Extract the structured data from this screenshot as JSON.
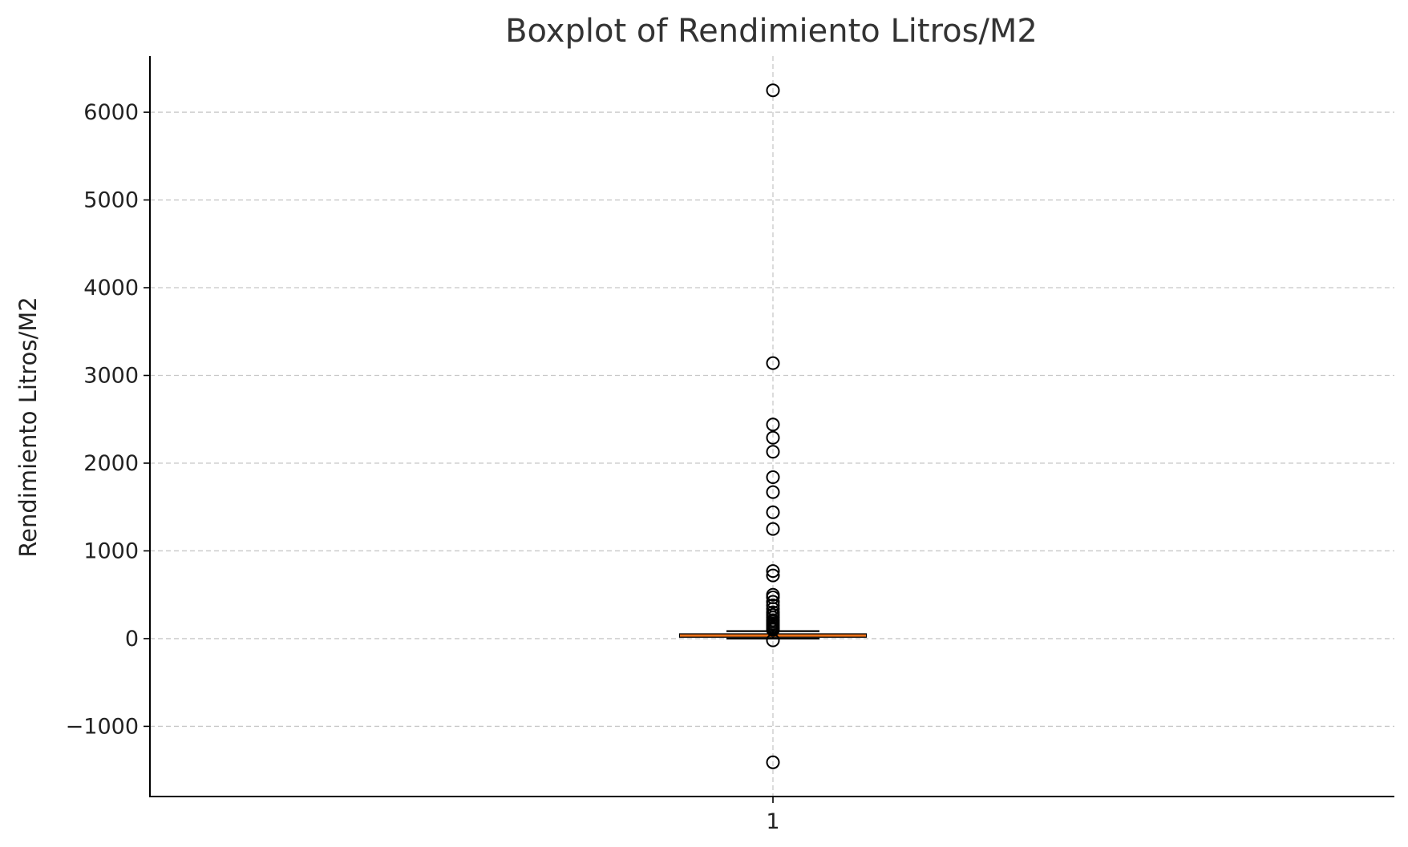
{
  "chart_data": {
    "type": "boxplot",
    "title": "Boxplot of Rendimiento Litros/M2",
    "ylabel": "Rendimiento Litros/M2",
    "xlabel": "",
    "categories": [
      "1"
    ],
    "ylim": [
      -1800,
      6640
    ],
    "yticks": [
      -1000,
      0,
      1000,
      2000,
      3000,
      4000,
      5000,
      6000
    ],
    "ytick_labels": [
      "−1000",
      "0",
      "1000",
      "2000",
      "3000",
      "4000",
      "5000",
      "6000"
    ],
    "grid": true,
    "box": {
      "whisker_low": 0,
      "q1": 20,
      "median": 35,
      "q3": 50,
      "whisker_high": 85
    },
    "outliers": [
      6250,
      3140,
      2440,
      2290,
      2130,
      1840,
      1670,
      1440,
      1250,
      770,
      720,
      500,
      470,
      420,
      380,
      340,
      300,
      270,
      240,
      210,
      190,
      170,
      150,
      130,
      115,
      100,
      -20,
      -1410
    ],
    "colors": {
      "median": "#e8701a",
      "box": "#000000",
      "grid": "#c8c8c8"
    }
  }
}
